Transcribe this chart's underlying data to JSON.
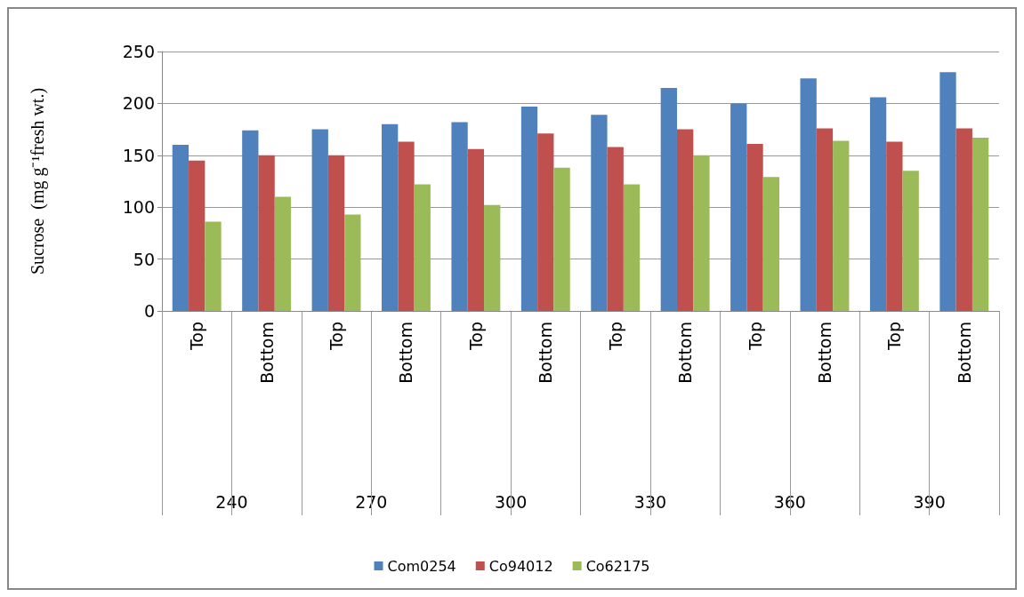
{
  "chart_data": {
    "type": "bar",
    "ylabel": "Sucrose  (mg g⁻¹fresh wt.)",
    "categories": [
      "Top",
      "Bottom",
      "Top",
      "Bottom",
      "Top",
      "Bottom",
      "Top",
      "Bottom",
      "Top",
      "Bottom",
      "Top",
      "Bottom"
    ],
    "annotations": [
      "240",
      "270",
      "300",
      "330",
      "360",
      "390"
    ],
    "series": [
      {
        "name": "Com0254",
        "color": "#4f81bd",
        "values": [
          160,
          174,
          175,
          180,
          182,
          197,
          189,
          215,
          200,
          224,
          206,
          230
        ]
      },
      {
        "name": "Co94012",
        "color": "#c0504d",
        "values": [
          145,
          150,
          150,
          163,
          156,
          171,
          158,
          175,
          161,
          176,
          163,
          176
        ]
      },
      {
        "name": "Co62175",
        "color": "#9bbb59",
        "values": [
          86,
          110,
          93,
          122,
          102,
          138,
          122,
          150,
          129,
          164,
          135,
          167
        ]
      }
    ],
    "ylim": [
      0,
      250
    ],
    "yticks": [
      0,
      50,
      100,
      150,
      200,
      250
    ],
    "grid": "y",
    "legend": "bottom"
  }
}
